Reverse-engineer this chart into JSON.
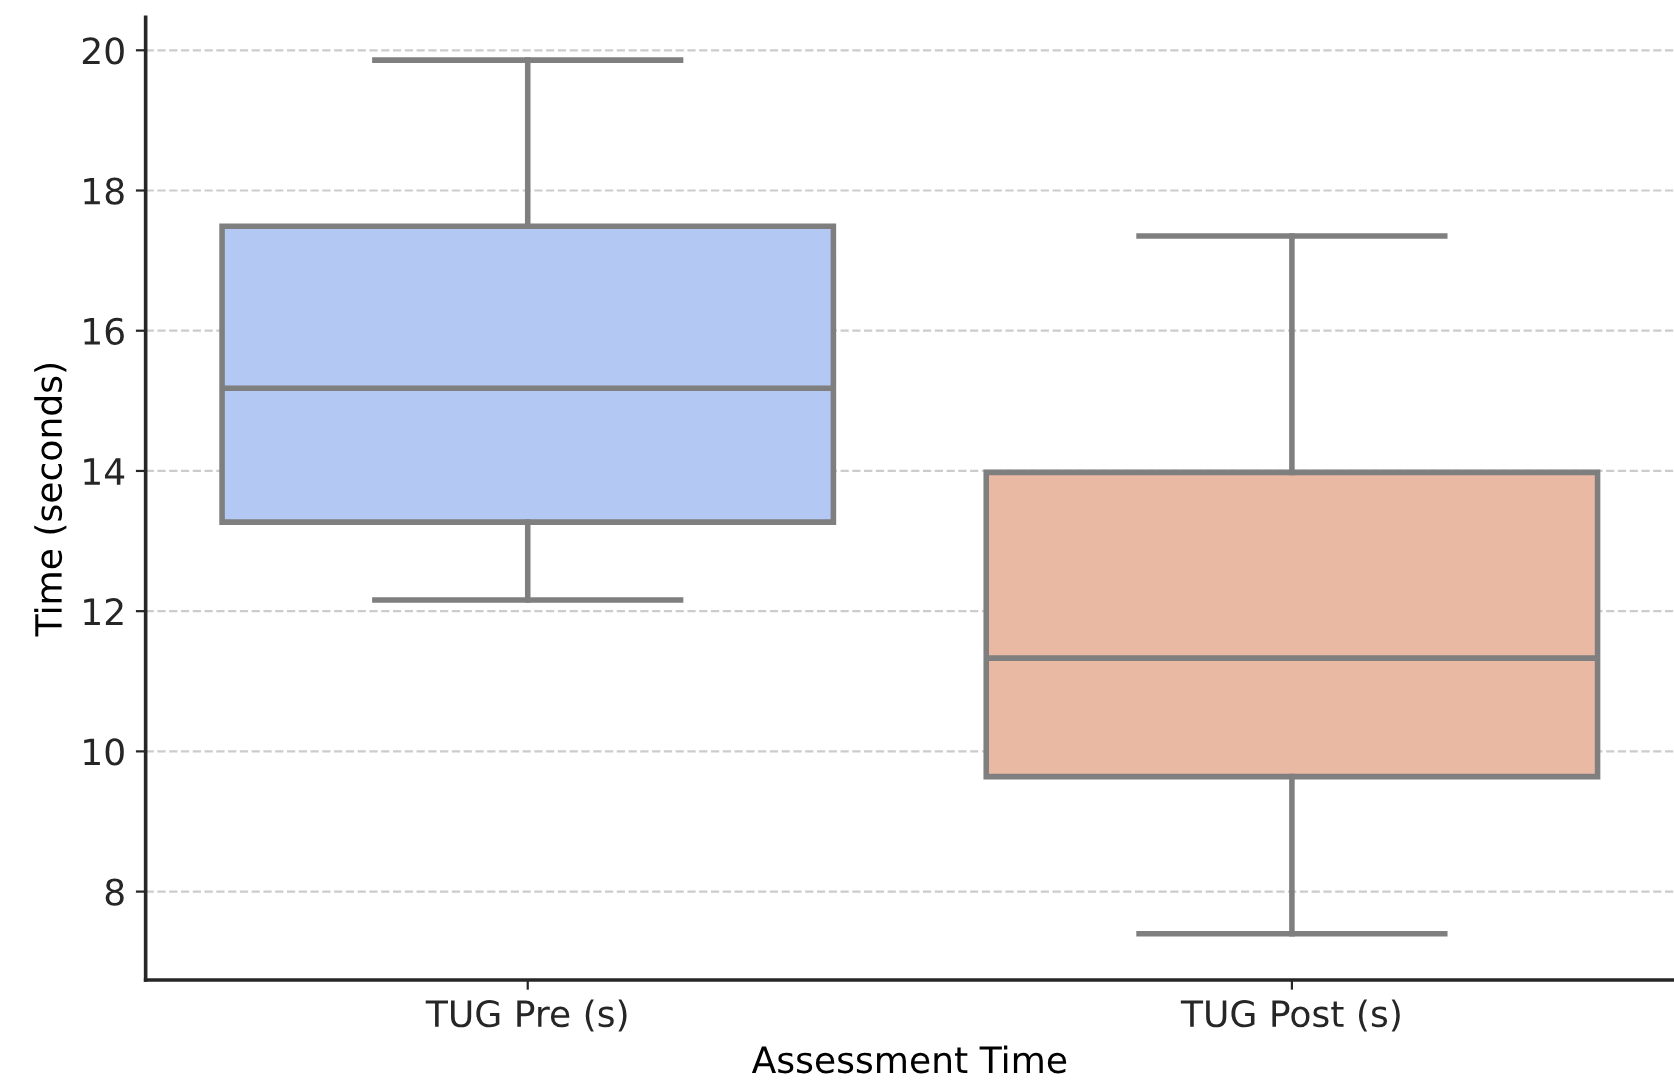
{
  "chart_data": {
    "type": "box",
    "xlabel": "Assessment Time",
    "ylabel": "Time (seconds)",
    "categories": [
      "TUG Pre (s)",
      "TUG Post (s)"
    ],
    "colors": [
      "#b3c8f2",
      "#eab9a4"
    ],
    "boxes": [
      {
        "low": 12.16,
        "q1": 13.27,
        "median": 15.18,
        "q3": 17.49,
        "high": 19.86
      },
      {
        "low": 7.4,
        "q1": 9.64,
        "median": 11.33,
        "q3": 13.98,
        "high": 17.35
      }
    ],
    "ylim": [
      6.74,
      20.47
    ],
    "yticks": [
      8,
      10,
      12,
      14,
      16,
      18,
      20
    ],
    "grid": "y"
  }
}
